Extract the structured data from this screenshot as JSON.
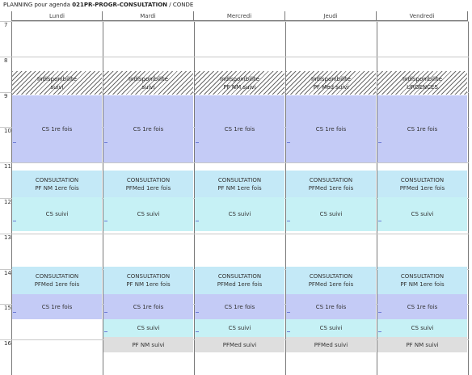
{
  "title": {
    "prefix": "PLANNING pour agenda ",
    "agenda": "021PR-PROGR-CONSULTATION",
    "suffix": " / CONDE"
  },
  "days": [
    "Lundi",
    "Mardi",
    "Mercredi",
    "Jeudi",
    "Vendredi"
  ],
  "hours": [
    "7",
    "8",
    "9",
    "10",
    "11",
    "12",
    "13",
    "14",
    "15",
    "16"
  ],
  "rows": {
    "indispo": [
      "Indisponibilite\nsuivi",
      "Indisponibilite\nsuivi",
      "Indisponibilite\nPF NM suivi",
      "Indisponibilite\nPF Med suivi",
      "Indisponibilite\nURGENCES"
    ],
    "cs1_morning": [
      "CS 1re fois",
      "CS 1re fois",
      "CS 1re fois",
      "CS 1re fois",
      "CS 1re fois"
    ],
    "consult_morning": [
      "CONSULTATION\nPF NM 1ere fois",
      "CONSULTATION\nPFMed 1ere fois",
      "CONSULTATION\nPF NM 1ere fois",
      "CONSULTATION\nPFMed 1ere fois",
      "CONSULTATION\nPFMed 1ere fois"
    ],
    "suivi_morning": [
      "CS suivi",
      "CS suivi",
      "CS suivi",
      "CS suivi",
      "CS suivi"
    ],
    "consult_afternoon": [
      "CONSULTATION\nPFMed 1ere fois",
      "CONSULTATION\nPF NM 1ere fois",
      "CONSULTATION\nPFMed 1ere fois",
      "CONSULTATION\nPFMed 1ere fois",
      "CONSULTATION\nPF NM 1ere fois"
    ],
    "cs1_afternoon": [
      "CS 1re fois",
      "CS 1re fois",
      "CS 1re fois",
      "CS 1re fois",
      "CS 1re fois"
    ],
    "suivi_afternoon": [
      "CS suivi",
      "CS suivi",
      "CS suivi",
      "CS suivi"
    ],
    "grey_afternoon": [
      "PF NM suivi",
      "PFMed suivi",
      "PFMed suivi",
      "PF NM suivi"
    ]
  },
  "colors": {
    "cs1": "#c4cbf6",
    "consultation": "#c4e9f7",
    "suivi": "#c6f1f5",
    "grey": "#dedede"
  }
}
